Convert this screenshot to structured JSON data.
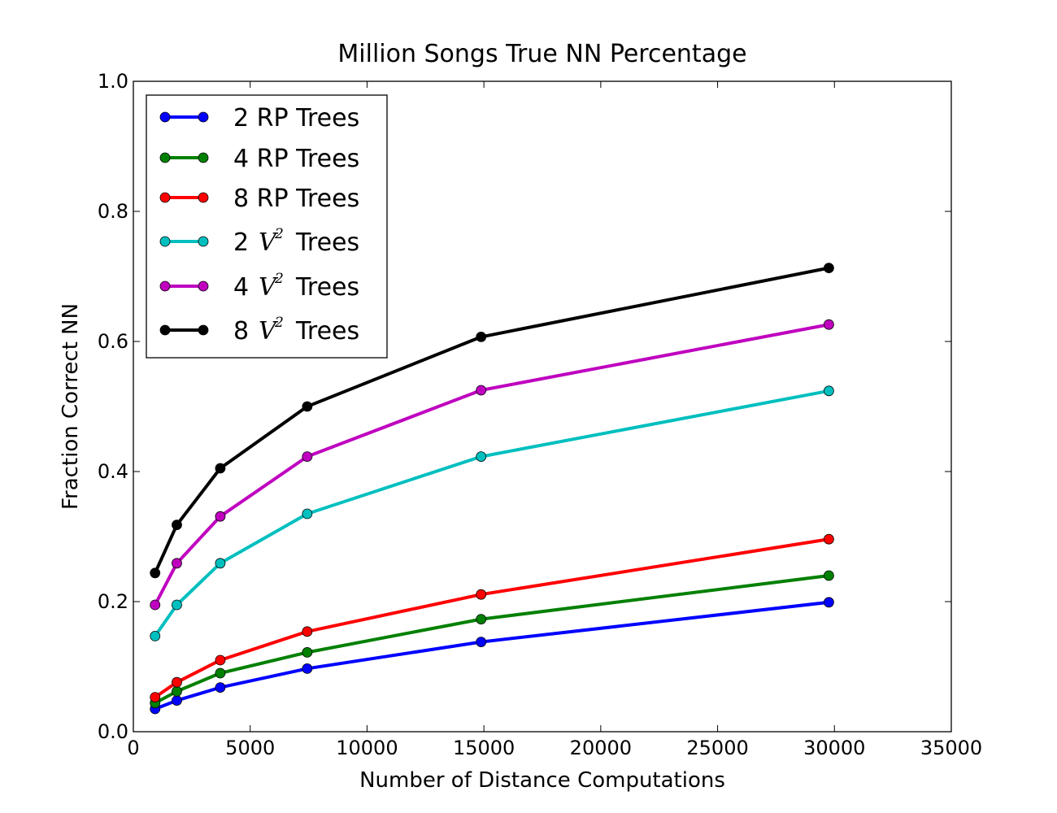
{
  "chart_data": {
    "type": "line",
    "title": "Million Songs True NN Percentage",
    "xlabel": "Number of Distance Computations",
    "ylabel": "Fraction Correct NN",
    "xlim": [
      0,
      35000
    ],
    "ylim": [
      0.0,
      1.0
    ],
    "x_ticks": [
      "0",
      "5000",
      "10000",
      "15000",
      "20000",
      "25000",
      "30000",
      "35000"
    ],
    "y_ticks": [
      "0.0",
      "0.2",
      "0.4",
      "0.6",
      "0.8",
      "1.0"
    ],
    "grid": false,
    "legend_position": "top-left",
    "x": [
      930,
      1860,
      3720,
      7440,
      14880,
      29760
    ],
    "series": [
      {
        "name": "2 RP Trees",
        "label_main": "2 RP Trees",
        "color": "#0000ff",
        "values": [
          0.035,
          0.048,
          0.068,
          0.097,
          0.138,
          0.199
        ]
      },
      {
        "name": "4 RP Trees",
        "label_main": "4 RP Trees",
        "color": "#008000",
        "values": [
          0.044,
          0.062,
          0.09,
          0.122,
          0.173,
          0.24
        ]
      },
      {
        "name": "8 RP Trees",
        "label_main": "8 RP Trees",
        "color": "#ff0000",
        "values": [
          0.053,
          0.076,
          0.11,
          0.154,
          0.211,
          0.296
        ]
      },
      {
        "name": "2 V2 Trees",
        "label_pre": "2",
        "label_math": "V",
        "label_sup": "2",
        "label_post": "Trees",
        "color": "#00bfbf",
        "values": [
          0.147,
          0.195,
          0.259,
          0.335,
          0.423,
          0.524
        ]
      },
      {
        "name": "4 V2 Trees",
        "label_pre": "4",
        "label_math": "V",
        "label_sup": "2",
        "label_post": "Trees",
        "color": "#bf00bf",
        "values": [
          0.195,
          0.259,
          0.331,
          0.423,
          0.525,
          0.626
        ]
      },
      {
        "name": "8 V2 Trees",
        "label_pre": "8",
        "label_math": "V",
        "label_sup": "2",
        "label_post": "Trees",
        "color": "#000000",
        "values": [
          0.244,
          0.318,
          0.405,
          0.5,
          0.607,
          0.713
        ]
      }
    ]
  }
}
